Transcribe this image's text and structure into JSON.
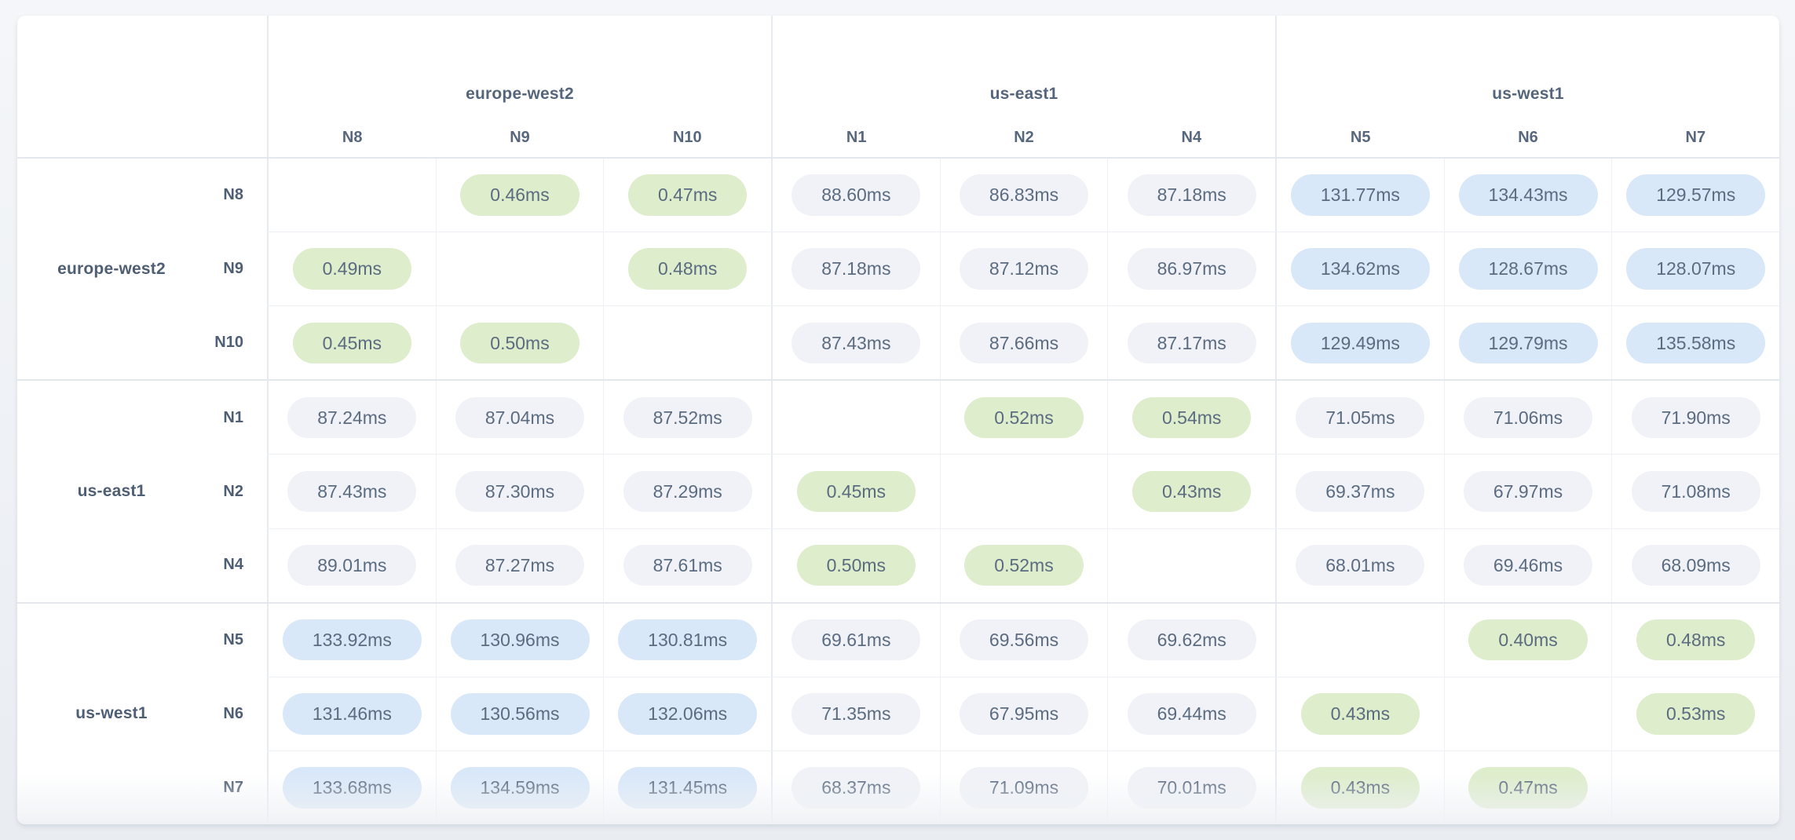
{
  "unit": "ms",
  "legend_colors": {
    "same_region_low": "#deedcc",
    "cross_region_mid": "#f0f2f7",
    "cross_region_high": "#d9e8f8"
  },
  "tier_thresholds": {
    "low_below_ms": 1,
    "high_at_or_above_ms": 100
  },
  "column_groups": [
    {
      "region": "europe-west2",
      "nodes": [
        "N8",
        "N9",
        "N10"
      ]
    },
    {
      "region": "us-east1",
      "nodes": [
        "N1",
        "N2",
        "N4"
      ]
    },
    {
      "region": "us-west1",
      "nodes": [
        "N5",
        "N6",
        "N7"
      ]
    }
  ],
  "row_groups": [
    {
      "region": "europe-west2",
      "rows": [
        {
          "node": "N8",
          "values": [
            "",
            "0.46ms",
            "0.47ms",
            "88.60ms",
            "86.83ms",
            "87.18ms",
            "131.77ms",
            "134.43ms",
            "129.57ms"
          ]
        },
        {
          "node": "N9",
          "values": [
            "0.49ms",
            "",
            "0.48ms",
            "87.18ms",
            "87.12ms",
            "86.97ms",
            "134.62ms",
            "128.67ms",
            "128.07ms"
          ]
        },
        {
          "node": "N10",
          "values": [
            "0.45ms",
            "0.50ms",
            "",
            "87.43ms",
            "87.66ms",
            "87.17ms",
            "129.49ms",
            "129.79ms",
            "135.58ms"
          ]
        }
      ]
    },
    {
      "region": "us-east1",
      "rows": [
        {
          "node": "N1",
          "values": [
            "87.24ms",
            "87.04ms",
            "87.52ms",
            "",
            "0.52ms",
            "0.54ms",
            "71.05ms",
            "71.06ms",
            "71.90ms"
          ]
        },
        {
          "node": "N2",
          "values": [
            "87.43ms",
            "87.30ms",
            "87.29ms",
            "0.45ms",
            "",
            "0.43ms",
            "69.37ms",
            "67.97ms",
            "71.08ms"
          ]
        },
        {
          "node": "N4",
          "values": [
            "89.01ms",
            "87.27ms",
            "87.61ms",
            "0.50ms",
            "0.52ms",
            "",
            "68.01ms",
            "69.46ms",
            "68.09ms"
          ]
        }
      ]
    },
    {
      "region": "us-west1",
      "rows": [
        {
          "node": "N5",
          "values": [
            "133.92ms",
            "130.96ms",
            "130.81ms",
            "69.61ms",
            "69.56ms",
            "69.62ms",
            "",
            "0.40ms",
            "0.48ms"
          ]
        },
        {
          "node": "N6",
          "values": [
            "131.46ms",
            "130.56ms",
            "132.06ms",
            "71.35ms",
            "67.95ms",
            "69.44ms",
            "0.43ms",
            "",
            "0.53ms"
          ]
        },
        {
          "node": "N7",
          "values": [
            "133.68ms",
            "134.59ms",
            "131.45ms",
            "68.37ms",
            "71.09ms",
            "70.01ms",
            "0.43ms",
            "0.47ms",
            ""
          ]
        }
      ]
    }
  ]
}
